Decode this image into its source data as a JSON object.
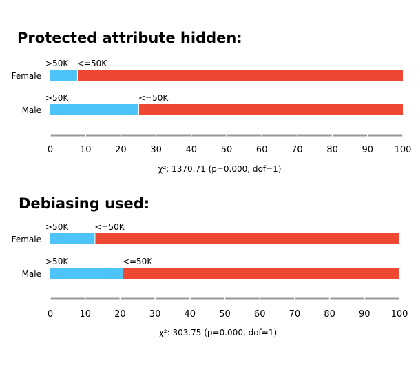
{
  "chart_data": [
    {
      "type": "bar",
      "title": "Protected attribute hidden:",
      "categories": [
        "Female",
        "Male"
      ],
      "series": [
        {
          "name": ">50K",
          "values": [
            7.6,
            25.0
          ],
          "color": "#4dc3f7"
        },
        {
          "name": "<=50K",
          "values": [
            92.4,
            75.0
          ],
          "color": "#ee4833"
        }
      ],
      "xticks": [
        "0",
        "10",
        "20",
        "30",
        "40",
        "50",
        "60",
        "70",
        "80",
        "90",
        "100"
      ],
      "xlim": [
        0,
        100
      ],
      "statistic": "χ²: 1370.71 (p=0.000, dof=1)"
    },
    {
      "type": "bar",
      "title": "Debiasing used:",
      "categories": [
        "Female",
        "Male"
      ],
      "series": [
        {
          "name": ">50K",
          "values": [
            12.7,
            20.7
          ],
          "color": "#4dc3f7"
        },
        {
          "name": "<=50K",
          "values": [
            87.3,
            79.3
          ],
          "color": "#ee4833"
        }
      ],
      "xticks": [
        "0",
        "10",
        "20",
        "30",
        "40",
        "50",
        "60",
        "70",
        "80",
        "90",
        "100"
      ],
      "xlim": [
        0,
        100
      ],
      "statistic": "χ²: 303.75 (p=0.000, dof=1)"
    }
  ]
}
